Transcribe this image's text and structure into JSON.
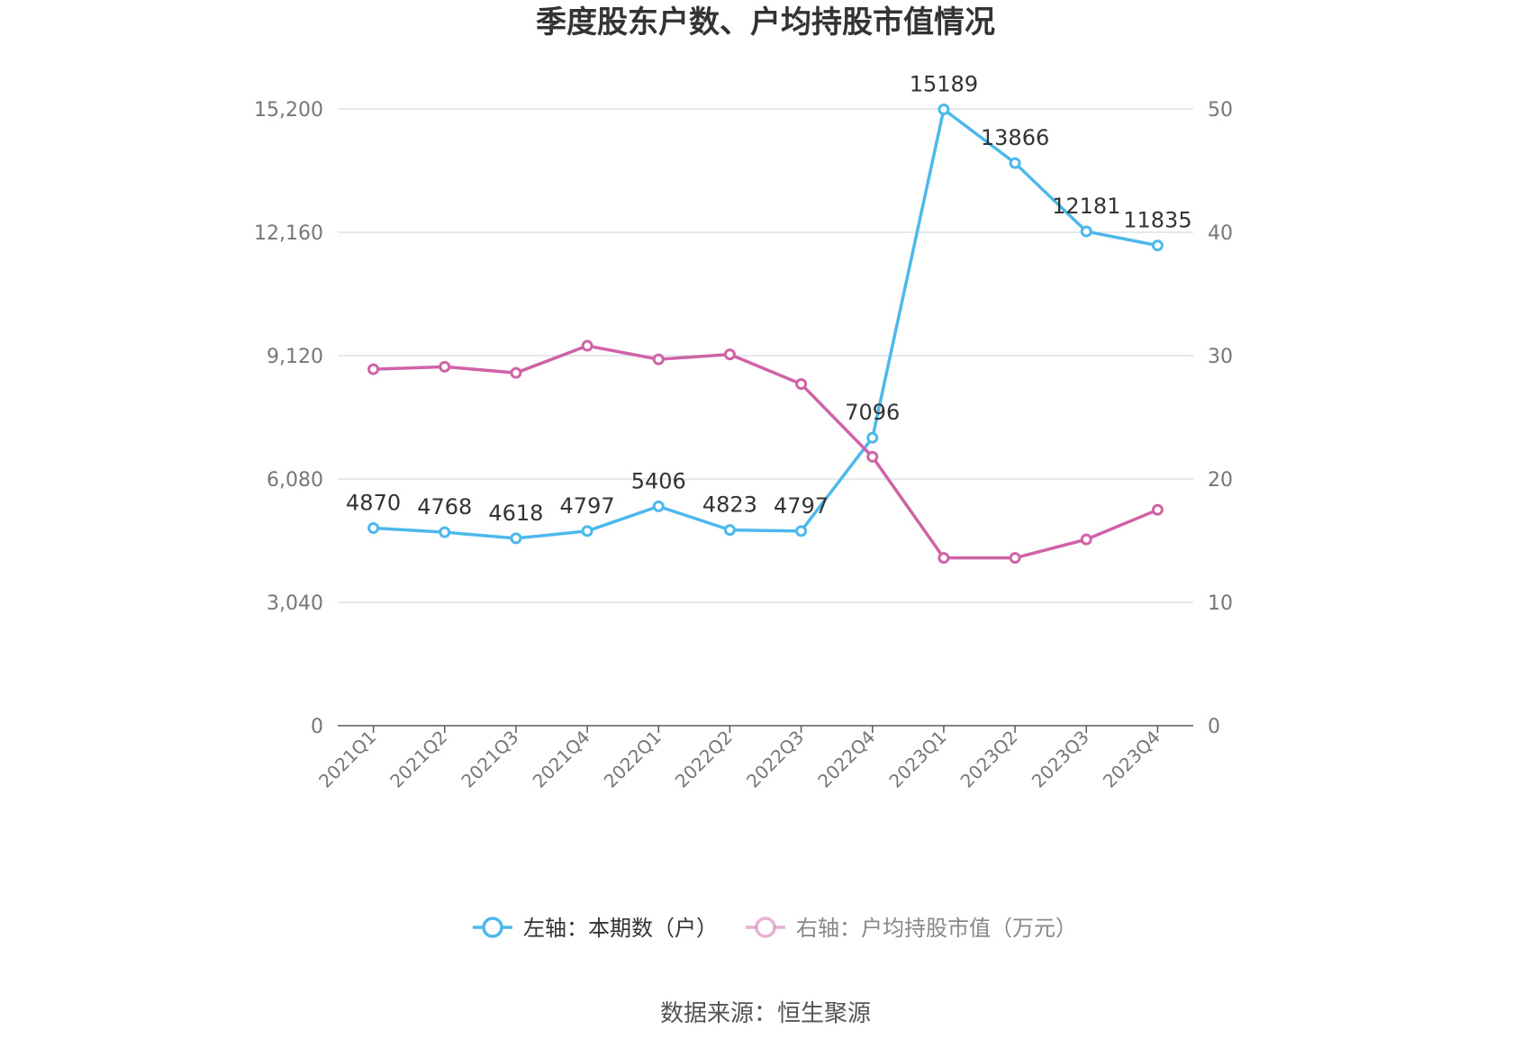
{
  "chart_data": {
    "type": "line",
    "title": "季度股东户数、户均持股市值情况",
    "categories": [
      "2021Q1",
      "2021Q2",
      "2021Q3",
      "2021Q4",
      "2022Q1",
      "2022Q2",
      "2022Q3",
      "2022Q4",
      "2023Q1",
      "2023Q2",
      "2023Q3",
      "2023Q4"
    ],
    "left_axis": {
      "ticks": [
        "0",
        "3,040",
        "6,080",
        "9,120",
        "12,160",
        "15,200"
      ],
      "ylim": [
        0,
        15200
      ]
    },
    "right_axis": {
      "ticks": [
        "0",
        "10",
        "20",
        "30",
        "40",
        "50"
      ],
      "ylim": [
        0,
        50
      ]
    },
    "grid": true,
    "legend_position": "bottom-center",
    "series": [
      {
        "name": "左轴：本期数（户）",
        "axis": "left",
        "color": "#4db8ec",
        "values": [
          4870,
          4768,
          4618,
          4797,
          5406,
          4823,
          4797,
          7096,
          15189,
          13866,
          12181,
          11835
        ],
        "labels": [
          "4870",
          "4768",
          "4618",
          "4797",
          "5406",
          "4823",
          "4797",
          "7096",
          "15189",
          "13866",
          "12181",
          "11835"
        ]
      },
      {
        "name": "右轴：户均持股市值（万元）",
        "axis": "right",
        "color": "#d063a8",
        "values": [
          28.9,
          29.1,
          28.6,
          30.8,
          29.7,
          30.1,
          27.7,
          21.8,
          13.6,
          13.6,
          15.1,
          17.5
        ]
      }
    ],
    "source": "数据来源：恒生聚源"
  }
}
